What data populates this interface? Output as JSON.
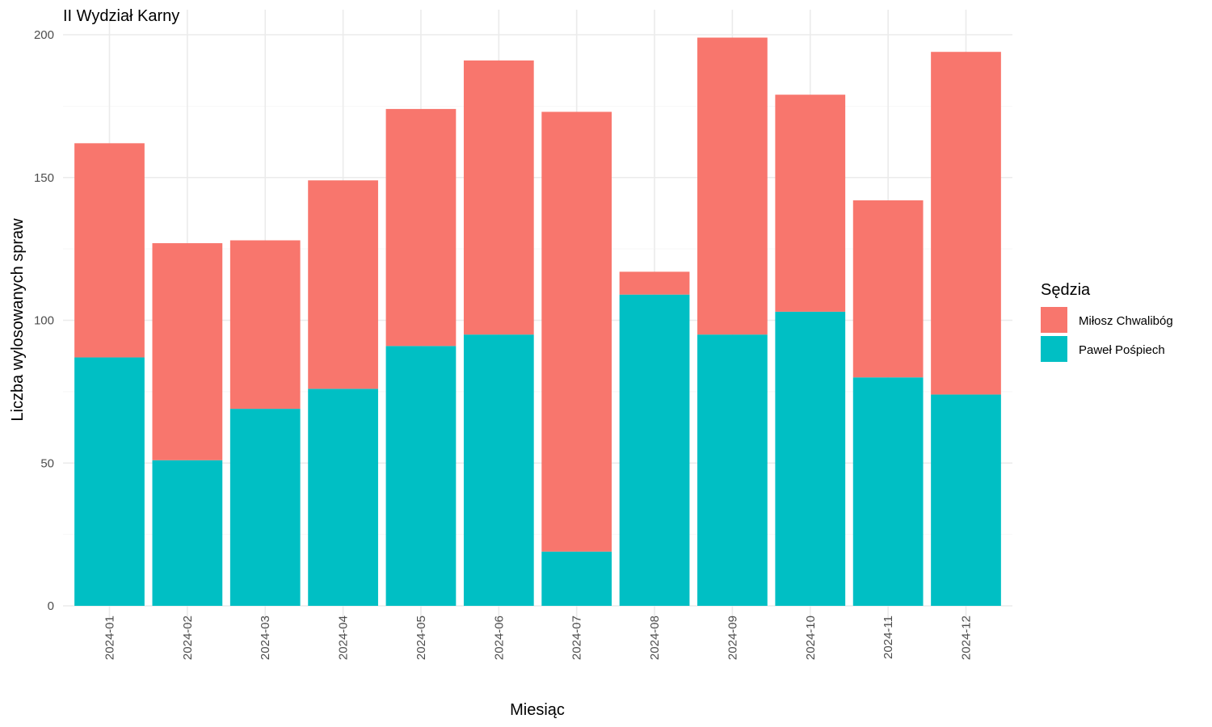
{
  "chart_data": {
    "type": "bar",
    "stacked": true,
    "title": "II Wydział Karny",
    "xlabel": "Miesiąc",
    "ylabel": "Liczba wylosowanych spraw",
    "ylim": [
      0,
      200
    ],
    "yticks": [
      0,
      50,
      100,
      150,
      200
    ],
    "grid": true,
    "legend_position": "right",
    "legend_title": "Sędzia",
    "categories": [
      "2024-01",
      "2024-02",
      "2024-03",
      "2024-04",
      "2024-05",
      "2024-06",
      "2024-07",
      "2024-08",
      "2024-09",
      "2024-10",
      "2024-11",
      "2024-12"
    ],
    "series": [
      {
        "name": "Paweł Pośpiech",
        "color": "#00BFC4",
        "values": [
          87,
          51,
          69,
          76,
          91,
          95,
          19,
          109,
          95,
          103,
          80,
          74
        ]
      },
      {
        "name": "Miłosz Chwalibóg",
        "color": "#F8766D",
        "values": [
          75,
          76,
          59,
          73,
          83,
          96,
          154,
          8,
          104,
          76,
          62,
          120
        ]
      }
    ],
    "legend_order": [
      "Miłosz Chwalibóg",
      "Paweł Pośpiech"
    ]
  }
}
